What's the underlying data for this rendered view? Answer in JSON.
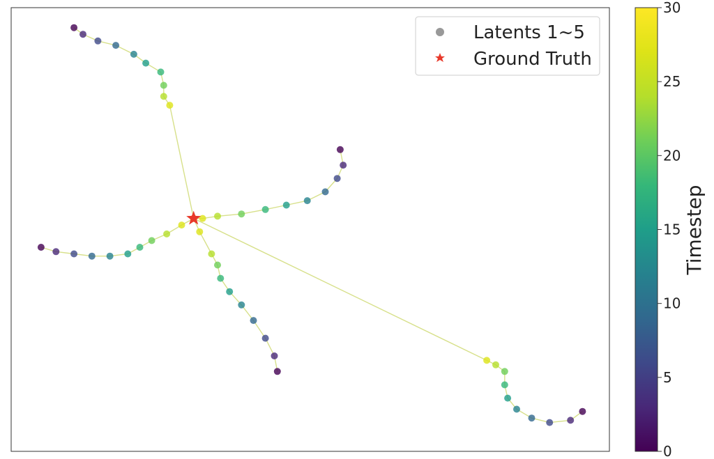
{
  "chart_data": {
    "type": "scatter",
    "title": "",
    "xlabel": "",
    "ylabel": "",
    "xticks": false,
    "yticks": false,
    "grid": false,
    "legend": {
      "placement": "top-right",
      "entries": [
        {
          "label": "Latents 1~5",
          "marker": "circle",
          "color": "#999999"
        },
        {
          "label": "Ground Truth",
          "marker": "star",
          "color": "#e8392a"
        }
      ]
    },
    "colorbar": {
      "label": "Timestep",
      "min": 0,
      "max": 30,
      "ticks": [
        0,
        5,
        10,
        15,
        20,
        25,
        30
      ],
      "colormap": "viridis"
    },
    "xlim": [
      0,
      100
    ],
    "ylim": [
      0,
      100
    ],
    "ground_truth": {
      "x": 30.5,
      "y": 52.5
    },
    "series": [
      {
        "points": [
          [
            10.5,
            95.5
          ],
          [
            12.0,
            94.0
          ],
          [
            14.5,
            92.5
          ],
          [
            17.5,
            91.5
          ],
          [
            20.5,
            89.5
          ],
          [
            22.5,
            87.5
          ],
          [
            25.0,
            85.5
          ],
          [
            25.5,
            82.5
          ],
          [
            25.5,
            80.0
          ],
          [
            26.5,
            78.0
          ],
          [
            30.5,
            52.5
          ]
        ]
      },
      {
        "points": [
          [
            55.0,
            68.0
          ],
          [
            55.5,
            64.5
          ],
          [
            54.5,
            61.5
          ],
          [
            52.5,
            58.5
          ],
          [
            49.5,
            56.5
          ],
          [
            46.0,
            55.5
          ],
          [
            42.5,
            54.5
          ],
          [
            38.5,
            53.5
          ],
          [
            34.5,
            53.0
          ],
          [
            32.0,
            52.5
          ],
          [
            30.5,
            52.5
          ]
        ]
      },
      {
        "points": [
          [
            5.0,
            46.0
          ],
          [
            7.5,
            45.0
          ],
          [
            10.5,
            44.5
          ],
          [
            13.5,
            44.0
          ],
          [
            16.5,
            44.0
          ],
          [
            19.5,
            44.5
          ],
          [
            21.5,
            46.0
          ],
          [
            23.5,
            47.5
          ],
          [
            26.0,
            49.0
          ],
          [
            28.5,
            51.0
          ],
          [
            30.5,
            52.5
          ]
        ]
      },
      {
        "points": [
          [
            44.5,
            18.0
          ],
          [
            44.0,
            21.5
          ],
          [
            42.5,
            25.5
          ],
          [
            40.5,
            29.5
          ],
          [
            38.5,
            33.0
          ],
          [
            36.5,
            36.0
          ],
          [
            35.0,
            39.0
          ],
          [
            34.5,
            42.0
          ],
          [
            33.5,
            44.5
          ],
          [
            31.5,
            49.5
          ],
          [
            30.5,
            52.5
          ]
        ]
      },
      {
        "points": [
          [
            95.5,
            9.0
          ],
          [
            93.5,
            7.0
          ],
          [
            90.0,
            6.5
          ],
          [
            87.0,
            7.5
          ],
          [
            84.5,
            9.5
          ],
          [
            83.0,
            12.0
          ],
          [
            82.5,
            15.0
          ],
          [
            82.5,
            18.0
          ],
          [
            81.0,
            19.5
          ],
          [
            79.5,
            20.5
          ],
          [
            30.5,
            52.5
          ]
        ]
      }
    ]
  }
}
